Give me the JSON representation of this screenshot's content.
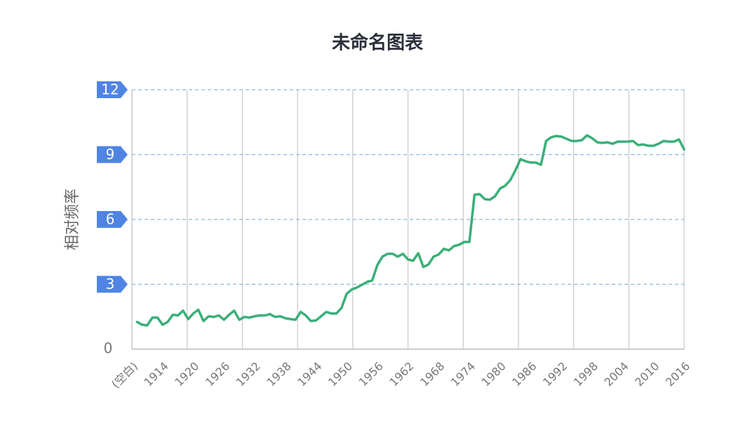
{
  "chart_data": {
    "type": "line",
    "title": "未命名图表",
    "y_label": "相对频率",
    "categories": [
      "(空白)",
      null,
      null,
      null,
      null,
      null,
      "1914",
      null,
      null,
      null,
      null,
      null,
      "1920",
      null,
      null,
      null,
      null,
      null,
      "1926",
      null,
      null,
      null,
      null,
      null,
      "1932",
      null,
      null,
      null,
      null,
      null,
      "1938",
      null,
      null,
      null,
      null,
      null,
      "1944",
      null,
      null,
      null,
      null,
      null,
      "1950",
      null,
      null,
      null,
      null,
      null,
      "1956",
      null,
      null,
      null,
      null,
      null,
      "1962",
      null,
      null,
      null,
      null,
      null,
      "1968",
      null,
      null,
      null,
      null,
      null,
      "1974",
      null,
      null,
      null,
      null,
      null,
      "1980",
      null,
      null,
      null,
      null,
      null,
      "1986",
      null,
      null,
      null,
      null,
      null,
      "1992",
      null,
      null,
      null,
      null,
      null,
      "1998",
      null,
      null,
      null,
      null,
      null,
      "2004",
      null,
      null,
      null,
      null,
      null,
      "2010",
      null,
      null,
      null,
      null,
      null,
      "2016"
    ],
    "series": [
      {
        "color": "#3aaf78",
        "values": [
          null,
          1.26,
          1.13,
          1.1,
          1.46,
          1.46,
          1.13,
          1.26,
          1.59,
          1.56,
          1.78,
          1.39,
          1.65,
          1.82,
          1.3,
          1.52,
          1.49,
          1.56,
          1.36,
          1.59,
          1.78,
          1.36,
          1.49,
          1.46,
          1.52,
          1.56,
          1.56,
          1.62,
          1.49,
          1.52,
          1.43,
          1.39,
          1.36,
          1.72,
          1.56,
          1.3,
          1.33,
          1.52,
          1.72,
          1.65,
          1.65,
          1.91,
          2.56,
          2.76,
          2.85,
          2.98,
          3.11,
          3.18,
          3.89,
          4.28,
          4.41,
          4.41,
          4.28,
          4.41,
          4.15,
          4.09,
          4.44,
          3.8,
          3.92,
          4.28,
          4.38,
          4.64,
          4.57,
          4.77,
          4.83,
          4.96,
          4.96,
          7.14,
          7.17,
          6.94,
          6.91,
          7.07,
          7.43,
          7.56,
          7.82,
          8.27,
          8.79,
          8.69,
          8.63,
          8.63,
          8.53,
          9.63,
          9.8,
          9.86,
          9.83,
          9.73,
          9.63,
          9.63,
          9.67,
          9.89,
          9.76,
          9.57,
          9.54,
          9.57,
          9.5,
          9.6,
          9.6,
          9.6,
          9.63,
          9.44,
          9.47,
          9.41,
          9.41,
          9.5,
          9.63,
          9.6,
          9.6,
          9.7,
          9.24
        ]
      }
    ],
    "ylim": [
      0,
      12
    ],
    "yticks": [
      0,
      3,
      6,
      9,
      12
    ],
    "grid": true
  }
}
